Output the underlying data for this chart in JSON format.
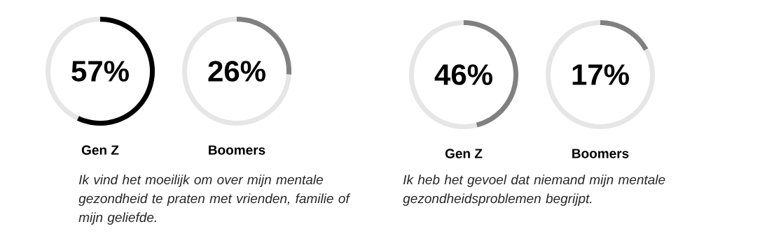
{
  "chart_data": [
    {
      "type": "donut",
      "title": "Gen Z",
      "categories": [
        null,
        null
      ],
      "values": [
        57,
        43
      ],
      "colors": [
        "#000000",
        "#e6e6e6"
      ],
      "annotations": [
        "57%",
        "Ik vind het moeilijk om over mijn mentale gezondheid te praten met vrienden, familie of mijn geliefde."
      ]
    },
    {
      "type": "donut",
      "title": "Boomers",
      "categories": [
        null,
        null
      ],
      "values": [
        26,
        74
      ],
      "colors": [
        "#808080",
        "#e6e6e6"
      ],
      "annotations": [
        "26%"
      ]
    },
    {
      "type": "donut",
      "title": "Gen Z",
      "categories": [
        null,
        null
      ],
      "values": [
        46,
        54
      ],
      "colors": [
        "#808080",
        "#e6e6e6"
      ],
      "annotations": [
        "46%",
        "Ik heb het gevoel dat niemand mijn mentale gezondheidsproblemen begrijpt."
      ]
    },
    {
      "type": "donut",
      "title": "Boomers",
      "categories": [
        null,
        null
      ],
      "values": [
        17,
        83
      ],
      "colors": [
        "#808080",
        "#e6e6e6"
      ],
      "annotations": [
        "17%"
      ]
    }
  ]
}
